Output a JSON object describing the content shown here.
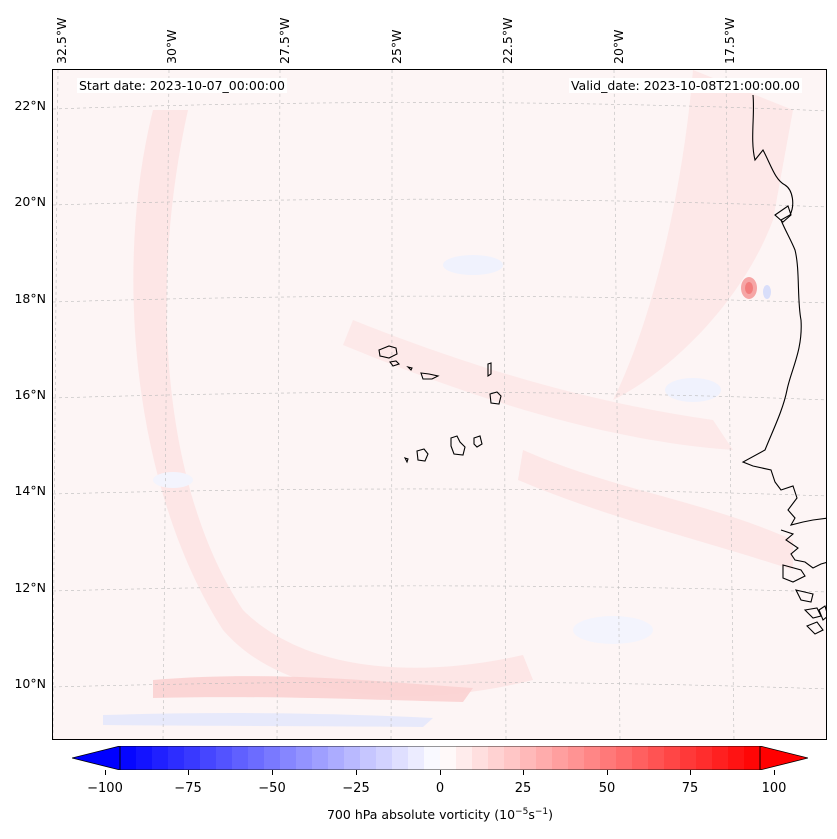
{
  "map": {
    "start_date": "Start date: 2023-10-07_00:00:00",
    "valid_date": "Valid_date: 2023-10-08T21:00:00.00",
    "lon_labels": [
      "32.5°W",
      "30°W",
      "27.5°W",
      "25°W",
      "22.5°W",
      "20°W",
      "17.5°W"
    ],
    "lat_labels": [
      "22°N",
      "20°N",
      "18°N",
      "16°N",
      "14°N",
      "12°N",
      "10°N"
    ],
    "gridlines": true,
    "coastline_color": "#000000",
    "region": "Cape Verde Islands and West African coast"
  },
  "colorbar": {
    "ticks": [
      "−100",
      "−75",
      "−50",
      "−25",
      "0",
      "25",
      "50",
      "75",
      "100"
    ],
    "label_main": "700 hPa absolute vorticity (10",
    "label_exp1": "−5",
    "label_mid": "s",
    "label_exp2": "−1",
    "label_end": ")",
    "min": -100,
    "max": 100,
    "colormap": "bwr",
    "extend": "both",
    "low_color": "#0000ff",
    "mid_color": "#ffffff",
    "high_color": "#ff0000"
  }
}
